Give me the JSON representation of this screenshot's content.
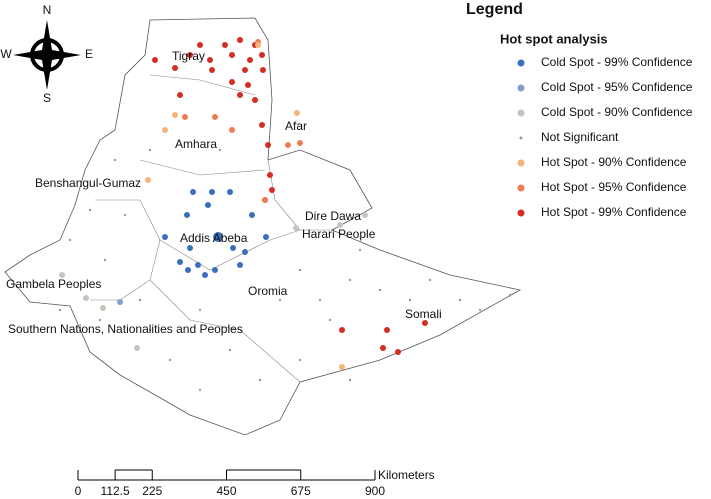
{
  "compass": {
    "north": "N",
    "south": "S",
    "west": "W",
    "east": "E"
  },
  "legend": {
    "title": "Legend",
    "subtitle": "Hot spot analysis",
    "items": [
      {
        "label": "Cold Spot - 99% Confidence",
        "color": "#3a6fbf"
      },
      {
        "label": "Cold Spot - 95% Confidence",
        "color": "#7f9fcc"
      },
      {
        "label": "Cold Spot - 90% Confidence",
        "color": "#c3c6bb"
      },
      {
        "label": "Not Significant",
        "color": "#9a9a9a"
      },
      {
        "label": "Hot Spot - 90% Confidence",
        "color": "#f5b47a"
      },
      {
        "label": "Hot Spot - 95% Confidence",
        "color": "#ee7d55"
      },
      {
        "label": "Hot Spot - 99% Confidence",
        "color": "#d42e22"
      }
    ]
  },
  "regions": [
    "Tigray",
    "Afar",
    "Amhara",
    "Benshangul-Gumaz",
    "Dire Dawa",
    "Harari People",
    "Addis Abeba",
    "Oromia",
    "Gambela Peoples",
    "Somali",
    "Southern Nations, Nationalities and Peoples"
  ],
  "scale_bar": {
    "unit": "Kilometers",
    "ticks": [
      0,
      112.5,
      225,
      450,
      675,
      900
    ]
  }
}
